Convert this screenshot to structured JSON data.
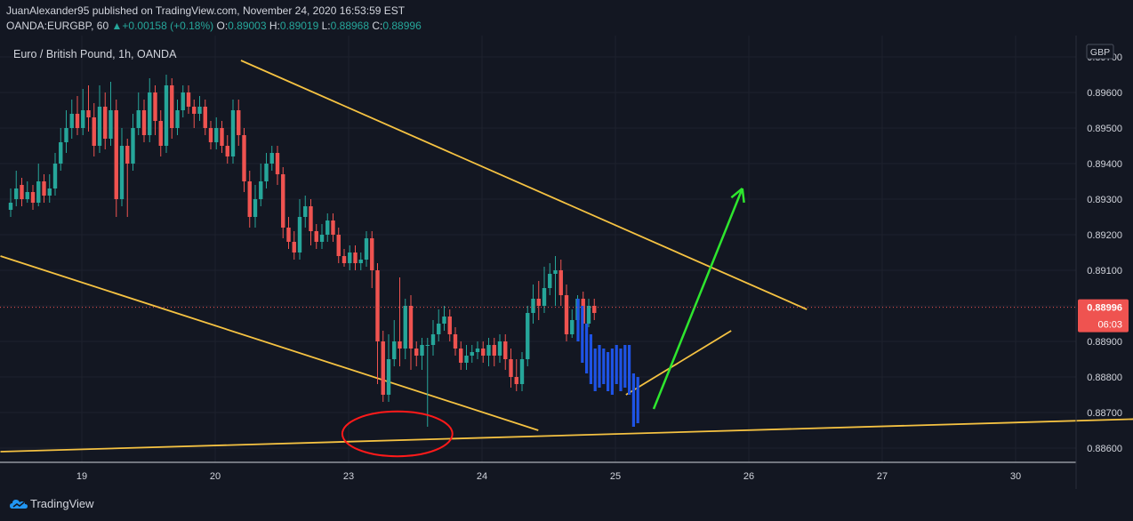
{
  "header": {
    "author": "JuanAlexander95",
    "published": "published on TradingView.com, November 24, 2020 16:53:59 EST",
    "symbol": "OANDA:EURGBP, 60",
    "change": "+0.00158 (+0.18%)",
    "o_label": "O:",
    "o_value": "0.89003",
    "h_label": "H:",
    "h_value": "0.89019",
    "l_label": "L:",
    "l_value": "0.88968",
    "c_label": "C:",
    "c_value": "0.88996"
  },
  "chart_data": {
    "type": "candlestick",
    "title": "Euro / British Pound, 1h, OANDA",
    "currency": "GBP",
    "x_ticks": [
      "19",
      "20",
      "23",
      "24",
      "25",
      "26",
      "27",
      "30"
    ],
    "y_ticks": [
      "0.88600",
      "0.88700",
      "0.88800",
      "0.88900",
      "0.89000",
      "0.89100",
      "0.89200",
      "0.89300",
      "0.89400",
      "0.89500",
      "0.89600",
      "0.89700"
    ],
    "ylim": [
      0.8856,
      0.8976
    ],
    "last_price": "0.88996",
    "countdown": "06:03",
    "colors": {
      "up": "#26a69a",
      "down": "#ef5350",
      "projection": "#1e53e5",
      "trendline": "#f5c242",
      "arrow": "#2ee62e",
      "circle": "#ff1a1a"
    },
    "candles": [
      [
        0.8927,
        0.8929,
        0.8925,
        0.8933
      ],
      [
        0.893,
        0.8933,
        0.8928,
        0.8938
      ],
      [
        0.8934,
        0.893,
        0.8928,
        0.8936
      ],
      [
        0.893,
        0.8932,
        0.8929,
        0.8935
      ],
      [
        0.8932,
        0.8929,
        0.8927,
        0.8934
      ],
      [
        0.8929,
        0.8935,
        0.8928,
        0.894
      ],
      [
        0.8935,
        0.8931,
        0.8929,
        0.8937
      ],
      [
        0.8931,
        0.8933,
        0.8929,
        0.8937
      ],
      [
        0.8933,
        0.894,
        0.8931,
        0.8943
      ],
      [
        0.894,
        0.8946,
        0.8938,
        0.895
      ],
      [
        0.8946,
        0.895,
        0.8943,
        0.8955
      ],
      [
        0.895,
        0.8954,
        0.8947,
        0.8958
      ],
      [
        0.8954,
        0.895,
        0.8948,
        0.8959
      ],
      [
        0.895,
        0.8955,
        0.8948,
        0.8961
      ],
      [
        0.8955,
        0.8953,
        0.8949,
        0.8962
      ],
      [
        0.8953,
        0.8945,
        0.8942,
        0.8957
      ],
      [
        0.8945,
        0.8956,
        0.8943,
        0.8962
      ],
      [
        0.8956,
        0.8947,
        0.8944,
        0.896
      ],
      [
        0.8947,
        0.8955,
        0.8945,
        0.8963
      ],
      [
        0.8955,
        0.893,
        0.8925,
        0.8958
      ],
      [
        0.893,
        0.8945,
        0.8928,
        0.895
      ],
      [
        0.8945,
        0.894,
        0.8925,
        0.8947
      ],
      [
        0.894,
        0.895,
        0.8938,
        0.8954
      ],
      [
        0.895,
        0.8955,
        0.8948,
        0.896
      ],
      [
        0.8955,
        0.8948,
        0.8946,
        0.8958
      ],
      [
        0.8948,
        0.896,
        0.8946,
        0.8964
      ],
      [
        0.896,
        0.8952,
        0.8948,
        0.8962
      ],
      [
        0.8952,
        0.8945,
        0.8942,
        0.8955
      ],
      [
        0.8945,
        0.8962,
        0.8943,
        0.8965
      ],
      [
        0.8962,
        0.895,
        0.8947,
        0.8964
      ],
      [
        0.895,
        0.8955,
        0.8948,
        0.8958
      ],
      [
        0.8955,
        0.896,
        0.8953,
        0.8962
      ],
      [
        0.896,
        0.8956,
        0.8954,
        0.8962
      ],
      [
        0.8956,
        0.8954,
        0.895,
        0.8958
      ],
      [
        0.8954,
        0.8956,
        0.8952,
        0.8959
      ],
      [
        0.8956,
        0.895,
        0.8948,
        0.8958
      ],
      [
        0.895,
        0.8946,
        0.8944,
        0.8952
      ],
      [
        0.8946,
        0.895,
        0.8944,
        0.8953
      ],
      [
        0.895,
        0.8945,
        0.8943,
        0.8952
      ],
      [
        0.8945,
        0.8942,
        0.894,
        0.8948
      ],
      [
        0.8942,
        0.8955,
        0.894,
        0.8958
      ],
      [
        0.8955,
        0.8948,
        0.8945,
        0.8958
      ],
      [
        0.8948,
        0.8935,
        0.8932,
        0.895
      ],
      [
        0.8935,
        0.8925,
        0.8922,
        0.8938
      ],
      [
        0.8925,
        0.893,
        0.8922,
        0.8934
      ],
      [
        0.893,
        0.8935,
        0.8928,
        0.894
      ],
      [
        0.8935,
        0.894,
        0.8933,
        0.8943
      ],
      [
        0.894,
        0.8943,
        0.8938,
        0.8945
      ],
      [
        0.8943,
        0.8937,
        0.8934,
        0.8945
      ],
      [
        0.8937,
        0.8922,
        0.8919,
        0.8939
      ],
      [
        0.8922,
        0.8918,
        0.8916,
        0.8925
      ],
      [
        0.8918,
        0.8915,
        0.8913,
        0.8921
      ],
      [
        0.8915,
        0.8925,
        0.8913,
        0.893
      ],
      [
        0.8925,
        0.8928,
        0.8922,
        0.8931
      ],
      [
        0.8928,
        0.8921,
        0.8917,
        0.893
      ],
      [
        0.8921,
        0.8918,
        0.8916,
        0.8923
      ],
      [
        0.8918,
        0.892,
        0.8916,
        0.8923
      ],
      [
        0.892,
        0.8924,
        0.8918,
        0.8926
      ],
      [
        0.8924,
        0.892,
        0.8918,
        0.8926
      ],
      [
        0.892,
        0.8914,
        0.8912,
        0.8922
      ],
      [
        0.8914,
        0.8912,
        0.8911,
        0.8916
      ],
      [
        0.8912,
        0.8915,
        0.891,
        0.8917
      ],
      [
        0.8915,
        0.8912,
        0.891,
        0.8917
      ],
      [
        0.8912,
        0.8913,
        0.891,
        0.8915
      ],
      [
        0.8913,
        0.8919,
        0.8911,
        0.8921
      ],
      [
        0.8919,
        0.891,
        0.8905,
        0.8921
      ],
      [
        0.891,
        0.889,
        0.8878,
        0.8912
      ],
      [
        0.889,
        0.8875,
        0.8873,
        0.8893
      ],
      [
        0.8875,
        0.8885,
        0.8873,
        0.8892
      ],
      [
        0.8885,
        0.889,
        0.8883,
        0.8896
      ],
      [
        0.889,
        0.8888,
        0.8883,
        0.8908
      ],
      [
        0.8888,
        0.89,
        0.8885,
        0.8902
      ],
      [
        0.89,
        0.8888,
        0.8882,
        0.8903
      ],
      [
        0.8888,
        0.8886,
        0.8883,
        0.889
      ],
      [
        0.8886,
        0.8889,
        0.8882,
        0.8891
      ],
      [
        0.8889,
        0.8889,
        0.8866,
        0.8891
      ],
      [
        0.8889,
        0.8892,
        0.8886,
        0.8896
      ],
      [
        0.8892,
        0.8895,
        0.889,
        0.8899
      ],
      [
        0.8895,
        0.8897,
        0.8893,
        0.89
      ],
      [
        0.8897,
        0.8892,
        0.889,
        0.8899
      ],
      [
        0.8892,
        0.8888,
        0.8886,
        0.8894
      ],
      [
        0.8888,
        0.8884,
        0.8882,
        0.889
      ],
      [
        0.8884,
        0.8886,
        0.8882,
        0.8889
      ],
      [
        0.8886,
        0.8887,
        0.8884,
        0.8889
      ],
      [
        0.8887,
        0.8888,
        0.8885,
        0.889
      ],
      [
        0.8888,
        0.8886,
        0.8884,
        0.889
      ],
      [
        0.8886,
        0.8889,
        0.8883,
        0.8891
      ],
      [
        0.8889,
        0.8886,
        0.8883,
        0.8891
      ],
      [
        0.8886,
        0.889,
        0.8884,
        0.8892
      ],
      [
        0.889,
        0.8885,
        0.8882,
        0.8892
      ],
      [
        0.8885,
        0.888,
        0.8877,
        0.8888
      ],
      [
        0.888,
        0.8878,
        0.8876,
        0.8885
      ],
      [
        0.8878,
        0.8885,
        0.8876,
        0.8887
      ],
      [
        0.8885,
        0.8898,
        0.8883,
        0.89
      ],
      [
        0.8898,
        0.8902,
        0.8895,
        0.8906
      ],
      [
        0.8902,
        0.89,
        0.8896,
        0.8907
      ],
      [
        0.89,
        0.8905,
        0.8898,
        0.8911
      ],
      [
        0.8905,
        0.8909,
        0.8903,
        0.8912
      ],
      [
        0.8909,
        0.891,
        0.89,
        0.8914
      ],
      [
        0.891,
        0.8903,
        0.89,
        0.8913
      ],
      [
        0.8903,
        0.8892,
        0.889,
        0.8906
      ],
      [
        0.8892,
        0.8896,
        0.8891,
        0.8899
      ],
      [
        0.8896,
        0.8902,
        0.8894,
        0.8903
      ],
      [
        0.8902,
        0.8895,
        0.8893,
        0.8904
      ],
      [
        0.8895,
        0.89,
        0.8894,
        0.8902
      ],
      [
        0.89,
        0.8898,
        0.8896,
        0.8902
      ]
    ],
    "projection_bars": [
      [
        0.889,
        0.8902
      ],
      [
        0.8884,
        0.89
      ],
      [
        0.8881,
        0.8895
      ],
      [
        0.8878,
        0.8892
      ],
      [
        0.8876,
        0.8888
      ],
      [
        0.8877,
        0.8889
      ],
      [
        0.8878,
        0.8888
      ],
      [
        0.8876,
        0.8887
      ],
      [
        0.8875,
        0.8888
      ],
      [
        0.8878,
        0.8889
      ],
      [
        0.8876,
        0.8888
      ],
      [
        0.8877,
        0.8889
      ],
      [
        0.8875,
        0.8889
      ],
      [
        0.8866,
        0.8881
      ],
      [
        0.8867,
        0.888
      ]
    ],
    "annotations": [
      {
        "type": "trendline",
        "points": [
          [
            0.5,
            0.8914
          ],
          [
            13.94,
            0.8865
          ]
        ]
      },
      {
        "type": "trendline",
        "points": [
          [
            0.5,
            0.8859
          ],
          [
            34.55,
            0.887
          ]
        ]
      },
      {
        "type": "trendline",
        "points": [
          [
            6.51,
            0.8969
          ],
          [
            20.65,
            0.8899
          ]
        ]
      },
      {
        "type": "trendline",
        "points": [
          [
            16.13,
            0.8875
          ],
          [
            18.76,
            0.8893
          ]
        ]
      },
      {
        "type": "arrow",
        "points": [
          [
            21.0,
            0.8871
          ],
          [
            23.85,
            0.8933
          ]
        ]
      },
      {
        "type": "ellipse",
        "center": [
          13.54,
          0.8864
        ],
        "radius_x": 4.1,
        "radius_y": 0.00063
      }
    ]
  },
  "footer": {
    "brand": "TradingView"
  }
}
